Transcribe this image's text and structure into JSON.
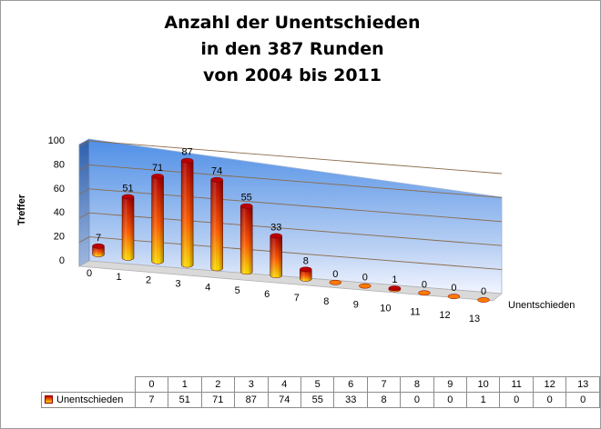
{
  "chart_data": {
    "type": "bar",
    "title_lines": [
      "Anzahl der Unentschieden",
      "in den 387 Runden",
      "von 2004 bis 2011"
    ],
    "ylabel": "Treffer",
    "xlabel": "Unentschieden",
    "categories": [
      "0",
      "1",
      "2",
      "3",
      "4",
      "5",
      "6",
      "7",
      "8",
      "9",
      "10",
      "11",
      "12",
      "13"
    ],
    "series": [
      {
        "name": "Unentschieden",
        "values": [
          7,
          51,
          71,
          87,
          74,
          55,
          33,
          8,
          0,
          0,
          1,
          0,
          0,
          0
        ]
      }
    ],
    "ylim": [
      0,
      100
    ],
    "yticks": [
      0,
      20,
      40,
      60,
      80,
      100
    ],
    "grid": true,
    "style": "3D cylinder",
    "legend": "data table",
    "colors": {
      "bar_top": "#c00000",
      "bar_bottom": "#ffd800",
      "wall_top": "#4f8fe6",
      "wall_bottom": "#eef3ff"
    }
  }
}
